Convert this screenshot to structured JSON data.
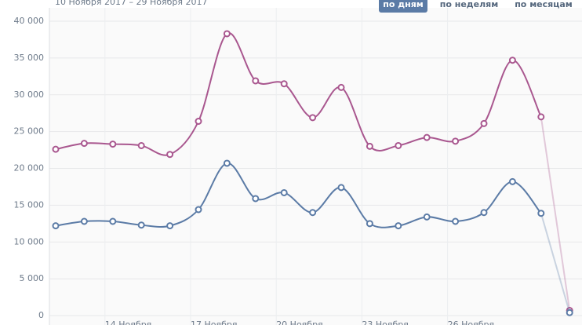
{
  "chart_data": {
    "type": "line",
    "subtitle": "10 Ноября 2017 – 29 Ноября 2017",
    "buttons": [
      "по дням",
      "по неделям",
      "по месяцам"
    ],
    "active_button": 0,
    "categories": [
      null,
      null,
      "14 Ноября",
      null,
      null,
      "17 Ноября",
      null,
      null,
      "20 Ноября",
      null,
      null,
      "23 Ноября",
      null,
      null,
      "26 Ноября",
      null,
      null,
      null,
      null
    ],
    "series": [
      {
        "color": "#a9578f",
        "values": [
          22600,
          23400,
          23300,
          23100,
          21900,
          26400,
          38300,
          31900,
          31500,
          26900,
          31000,
          23000,
          23100,
          24200,
          23700,
          26100,
          34700,
          27000,
          700
        ]
      },
      {
        "color": "#5b7ba6",
        "values": [
          12200,
          12800,
          12800,
          12300,
          12200,
          14400,
          20700,
          15900,
          16700,
          14000,
          17400,
          12500,
          12200,
          13400,
          12800,
          14000,
          18200,
          13900,
          400
        ]
      }
    ],
    "ylim": [
      0,
      40000
    ],
    "yticks": [
      0,
      {
        "value": 5000,
        "label": "5 000"
      },
      {
        "value": 10000,
        "label": "10 000"
      },
      {
        "value": 15000,
        "label": "15 000"
      },
      {
        "value": 20000,
        "label": "20 000"
      },
      {
        "value": 25000,
        "label": "25 000"
      },
      {
        "value": 30000,
        "label": "30 000"
      },
      {
        "value": 35000,
        "label": "35 000"
      },
      {
        "value": 40000,
        "label": "40 000"
      }
    ],
    "grid": true
  }
}
